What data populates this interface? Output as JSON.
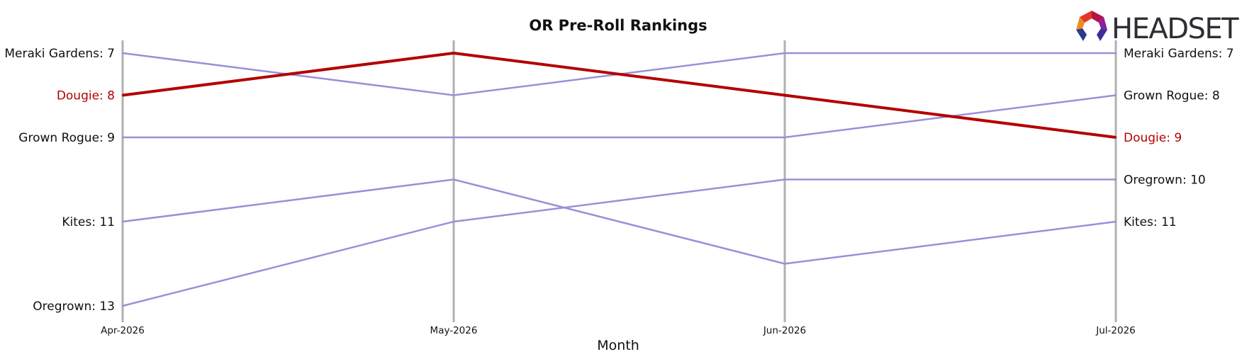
{
  "chart_data": {
    "type": "line",
    "title": "OR Pre-Roll Rankings",
    "xlabel": "Month",
    "ylabel": "",
    "x": [
      "Apr-2026",
      "May-2026",
      "Jun-2026",
      "Jul-2026"
    ],
    "ylim": [
      13,
      7
    ],
    "y_inverted": true,
    "grid": false,
    "legend": "none",
    "series": [
      {
        "name": "Meraki Gardens",
        "values": [
          7,
          8,
          7,
          7
        ],
        "color": "#9b8fd8",
        "highlight": false
      },
      {
        "name": "Dougie",
        "values": [
          8,
          7,
          8,
          9
        ],
        "color": "#b30000",
        "highlight": true
      },
      {
        "name": "Grown Rogue",
        "values": [
          9,
          9,
          9,
          8
        ],
        "color": "#9b8fd8",
        "highlight": false
      },
      {
        "name": "Kites",
        "values": [
          11,
          10,
          12,
          11
        ],
        "color": "#9b8fd8",
        "highlight": false
      },
      {
        "name": "Oregrown",
        "values": [
          13,
          11,
          10,
          10
        ],
        "color": "#9b8fd8",
        "highlight": false
      }
    ],
    "left_labels": [
      {
        "series": "Meraki Gardens",
        "text": "Meraki Gardens: 7"
      },
      {
        "series": "Dougie",
        "text": "Dougie: 8"
      },
      {
        "series": "Grown Rogue",
        "text": "Grown Rogue: 9"
      },
      {
        "series": "Kites",
        "text": "Kites: 11"
      },
      {
        "series": "Oregrown",
        "text": "Oregrown: 13"
      }
    ],
    "right_labels": [
      {
        "series": "Meraki Gardens",
        "text": "Meraki Gardens: 7"
      },
      {
        "series": "Grown Rogue",
        "text": "Grown Rogue: 8"
      },
      {
        "series": "Dougie",
        "text": "Dougie: 9"
      },
      {
        "series": "Oregrown",
        "text": "Oregrown: 10"
      },
      {
        "series": "Kites",
        "text": "Kites: 11"
      }
    ]
  },
  "logo": {
    "text": "HEADSET"
  },
  "colors": {
    "highlight": "#b30000",
    "muted": "#9b8fd8",
    "axis": "#b0b0b0",
    "logo_text": "#2e2e33"
  }
}
